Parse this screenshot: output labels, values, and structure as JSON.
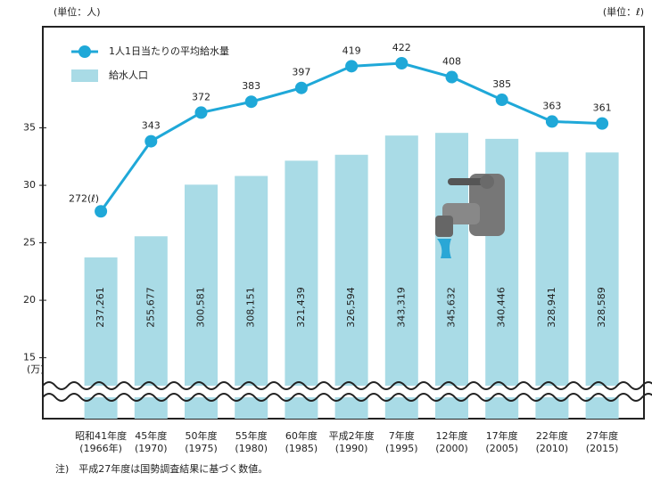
{
  "chart_data": {
    "type": "bar-line",
    "left_unit": "(単位：人)",
    "right_unit": "(単位：ℓ)",
    "axis_unit": "(万)",
    "note": "注)　平成27年度は国勢調査結果に基づく数値。",
    "categories": [
      "昭和41年度",
      "45年度",
      "50年度",
      "55年度",
      "60年度",
      "平成2年度",
      "7年度",
      "12年度",
      "17年度",
      "22年度",
      "27年度"
    ],
    "category_sublabels": [
      "(1966年)",
      "(1970)",
      "(1975)",
      "(1980)",
      "(1985)",
      "(1990)",
      "(1995)",
      "(2000)",
      "(2005)",
      "(2010)",
      "(2015)"
    ],
    "series": [
      {
        "name": "給水人口",
        "color": "#a9dbe6",
        "kind": "bar",
        "values": [
          23.7261,
          25.5677,
          30.0581,
          30.8151,
          32.1439,
          32.6594,
          34.3319,
          34.5632,
          34.0446,
          32.8941,
          32.8589
        ],
        "value_labels": [
          "237,261",
          "255,677",
          "300,581",
          "308,151",
          "321,439",
          "326,594",
          "343,319",
          "345,632",
          "340,446",
          "328,941",
          "328,589"
        ]
      },
      {
        "name": "1人1日当たりの平均給水量",
        "color": "#1fa8d8",
        "kind": "line",
        "axis": "y2",
        "values": [
          272,
          343,
          372,
          383,
          397,
          419,
          422,
          408,
          385,
          363,
          361
        ],
        "value_labels": [
          "272(ℓ)",
          "343",
          "372",
          "383",
          "397",
          "419",
          "422",
          "408",
          "385",
          "363",
          "361"
        ]
      }
    ],
    "ylim": [
      9.7,
      43.8
    ],
    "yticks": [
      15,
      20,
      25,
      30,
      35
    ],
    "y2lim": [
      62,
      459
    ]
  }
}
